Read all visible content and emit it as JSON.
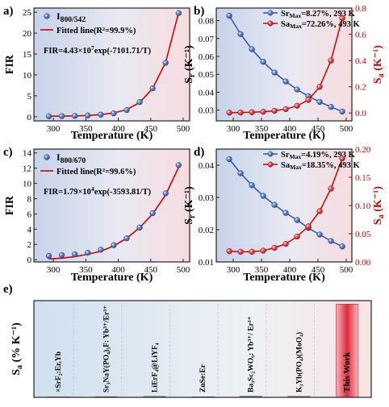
{
  "chart_data": [
    {
      "panel": "a)",
      "type": "scatter",
      "xlabel": "Temperature (K)",
      "ylabel": "FIR",
      "xlim": [
        270,
        510
      ],
      "ylim": [
        -1,
        26
      ],
      "xticks": [
        300,
        350,
        400,
        450,
        500
      ],
      "yticks": [
        0,
        5,
        10,
        15,
        20,
        25
      ],
      "x": [
        293,
        313,
        333,
        353,
        373,
        393,
        413,
        433,
        453,
        473,
        493
      ],
      "series": [
        {
          "name": "I800/542",
          "kind": "points",
          "values": [
            0.1,
            0.15,
            0.2,
            0.3,
            0.5,
            0.8,
            1.6,
            3.5,
            6.8,
            12.9,
            24.8
          ]
        },
        {
          "name": "Fitted line(R²=99.9%)",
          "kind": "fit",
          "values": [
            0.13,
            0.14,
            0.2,
            0.3,
            0.5,
            0.9,
            1.7,
            3.4,
            6.8,
            13.0,
            24.9
          ]
        }
      ],
      "annotation": "FIR=4.43×10⁷exp(-7101.71/T)",
      "legend": "top-left",
      "grid": false
    },
    {
      "panel": "b)",
      "type": "line",
      "xlabel": "Temperature (K)",
      "ylabel": "Sr (K⁻¹)",
      "ylabel_right": "Sa (K⁻¹)",
      "xlim": [
        270,
        510
      ],
      "ylim": [
        0.024,
        0.087
      ],
      "ylim_right": [
        -0.06,
        0.8
      ],
      "xticks": [
        300,
        350,
        400,
        450,
        500
      ],
      "yticks": [
        0.03,
        0.04,
        0.05,
        0.06,
        0.07,
        0.08
      ],
      "yticks_right": [
        0.0,
        0.2,
        0.4,
        0.6,
        0.8
      ],
      "x": [
        293,
        313,
        333,
        353,
        373,
        393,
        413,
        433,
        453,
        473,
        493
      ],
      "series": [
        {
          "name": "SrMax=8.27%, 293 K",
          "axis": "left",
          "values": [
            0.0827,
            0.0725,
            0.064,
            0.057,
            0.051,
            0.046,
            0.0415,
            0.0378,
            0.0346,
            0.0318,
            0.0292
          ]
        },
        {
          "name": "SaMax=72.26%, 493 K",
          "axis": "right",
          "values": [
            0.003,
            0.004,
            0.006,
            0.01,
            0.017,
            0.03,
            0.055,
            0.1,
            0.2,
            0.4,
            0.7226
          ]
        }
      ],
      "legend": "top-right",
      "grid": false
    },
    {
      "panel": "c)",
      "type": "scatter",
      "xlabel": "Temperature (K)",
      "ylabel": "FIR",
      "xlim": [
        270,
        510
      ],
      "ylim": [
        -0.3,
        14.5
      ],
      "xticks": [
        300,
        350,
        400,
        450,
        500
      ],
      "yticks": [
        0,
        2,
        4,
        6,
        8,
        10,
        12,
        14
      ],
      "x": [
        293,
        313,
        333,
        353,
        373,
        393,
        413,
        433,
        453,
        473,
        493
      ],
      "series": [
        {
          "name": "I800/670",
          "kind": "points",
          "values": [
            0.5,
            0.6,
            0.7,
            0.9,
            1.3,
            1.9,
            2.8,
            4.2,
            6.1,
            8.7,
            12.4
          ]
        },
        {
          "name": "Fitted line(R²=99.6%)",
          "kind": "fit",
          "values": [
            0.1,
            0.2,
            0.4,
            0.7,
            1.1,
            1.8,
            2.8,
            4.2,
            6.0,
            8.5,
            12.1
          ]
        }
      ],
      "annotation": "FIR=1.79×10⁴exp(-3593.81/T)",
      "legend": "top-left",
      "grid": false
    },
    {
      "panel": "d)",
      "type": "line",
      "xlabel": "Temperature (K)",
      "ylabel": "Sr (K⁻¹)",
      "ylabel_right": "Sa (K⁻¹)",
      "xlim": [
        270,
        510
      ],
      "ylim": [
        0.01,
        0.045
      ],
      "ylim_right": [
        0.0,
        0.2
      ],
      "xticks": [
        300,
        350,
        400,
        450,
        500
      ],
      "yticks": [
        0.01,
        0.02,
        0.03,
        0.04
      ],
      "yticks_right": [
        0.0,
        0.05,
        0.1,
        0.15,
        0.2
      ],
      "x": [
        293,
        313,
        333,
        353,
        373,
        393,
        413,
        433,
        453,
        473,
        493
      ],
      "series": [
        {
          "name": "SrMax=4.19%, 293 K",
          "axis": "left",
          "values": [
            0.0419,
            0.0375,
            0.0338,
            0.0305,
            0.0277,
            0.0252,
            0.023,
            0.0205,
            0.0185,
            0.0165,
            0.0148
          ]
        },
        {
          "name": "SaMax=18.35%, 493 K",
          "axis": "right",
          "values": [
            0.019,
            0.018,
            0.018,
            0.02,
            0.025,
            0.032,
            0.045,
            0.063,
            0.09,
            0.13,
            0.1835
          ]
        }
      ],
      "legend": "top-right",
      "grid": false
    },
    {
      "panel": "e)",
      "type": "bar",
      "xlabel": "",
      "ylabel": "Sa (% K⁻¹)",
      "ylim": [
        0,
        75
      ],
      "categories": [
        "×SrF₂:Er,Yb",
        "Sr₃NaY(PO₄)₃F: Yb³⁺/Er³⁺",
        "LiErF₄@LiYF₄",
        "ZnSe:Er",
        "Ba₃Sc₂WO₉: Yb³⁺/ Er³⁺",
        "K₃Yb(PO₄)(MoO₄)",
        "This Work"
      ],
      "values": [
        0.3,
        0.5,
        0.7,
        0.4,
        0.9,
        0.8,
        72.26
      ],
      "highlight": "This Work",
      "grid": false
    }
  ]
}
